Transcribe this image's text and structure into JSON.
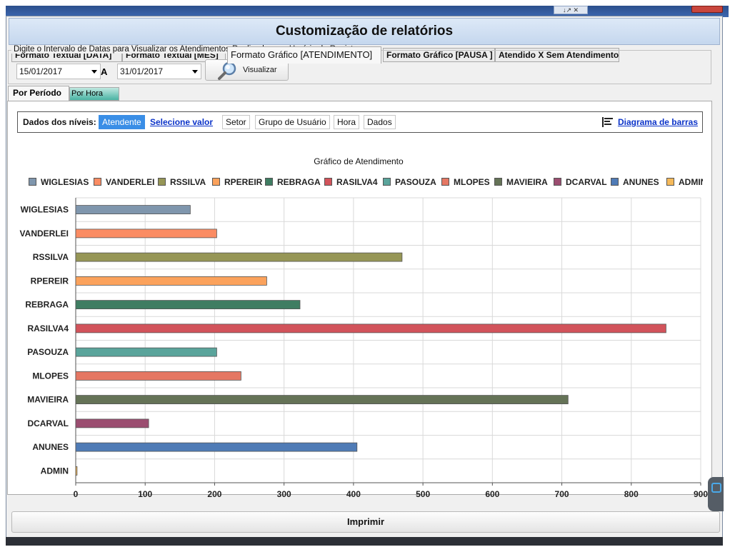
{
  "window": {
    "title": "Customização de relatórios",
    "top_controls": "↓↗ ✕"
  },
  "tabs": [
    {
      "label": "Formato Textual [DATA]",
      "active": false
    },
    {
      "label": "Formato Textual [MÊS]",
      "active": false
    },
    {
      "label": "Formato Gráfico [ATENDIMENTO]",
      "active": true
    },
    {
      "label": "Formato Gráfico [PAUSA ]",
      "active": false
    },
    {
      "label": "Atendido X Sem Atendimento",
      "active": false
    }
  ],
  "date_filter": {
    "legend": "Digite o Intervalo de Datas para Visualizar os Atendimentos Realizados por Horário de Registro",
    "from": "15/01/2017",
    "separator": "A",
    "to": "31/01/2017",
    "button": "Visualizar"
  },
  "subtabs": [
    {
      "label": "Por Período",
      "active": true
    },
    {
      "label": "Por Hora",
      "active": false
    }
  ],
  "levels": {
    "label": "Dados dos níveis:",
    "items": [
      "Atendente",
      "Selecione valor",
      "Setor",
      "Grupo de Usuário",
      "Hora",
      "Dados"
    ],
    "diagram_link": "Diagrama de barras"
  },
  "chart_data": {
    "type": "bar",
    "orientation": "horizontal",
    "title": "Gráfico de Atendimento",
    "categories": [
      "WIGLESIAS",
      "VANDERLEI",
      "RSSILVA",
      "RPEREIR",
      "REBRAGA",
      "RASILVA4",
      "PASOUZA",
      "MLOPES",
      "MAVIEIRA",
      "DCARVAL",
      "ANUNES",
      "ADMIN"
    ],
    "values": [
      165,
      203,
      470,
      275,
      323,
      850,
      203,
      238,
      709,
      105,
      405,
      2
    ],
    "colors": [
      "#7f96ad",
      "#fb8c63",
      "#969656",
      "#fba25c",
      "#3f7d62",
      "#d2535b",
      "#5aa49b",
      "#e57763",
      "#657357",
      "#9b4d70",
      "#4f7bb6",
      "#f5b95a"
    ],
    "legend_labels": [
      "WIGLESIAS",
      "VANDERLEI",
      "RSSILVA",
      "RPEREIR",
      "REBRAGA",
      "RASILVA4",
      "PASOUZA",
      "MLOPES",
      "MAVIEIRA",
      "DCARVAL",
      "ANUNES",
      "ADMIN"
    ],
    "xlim": [
      0,
      900
    ],
    "x_ticks": [
      0,
      100,
      200,
      300,
      400,
      500,
      600,
      700,
      800,
      900
    ],
    "grid": true,
    "legend_position": "top"
  },
  "footer": {
    "print_button": "Imprimir"
  }
}
